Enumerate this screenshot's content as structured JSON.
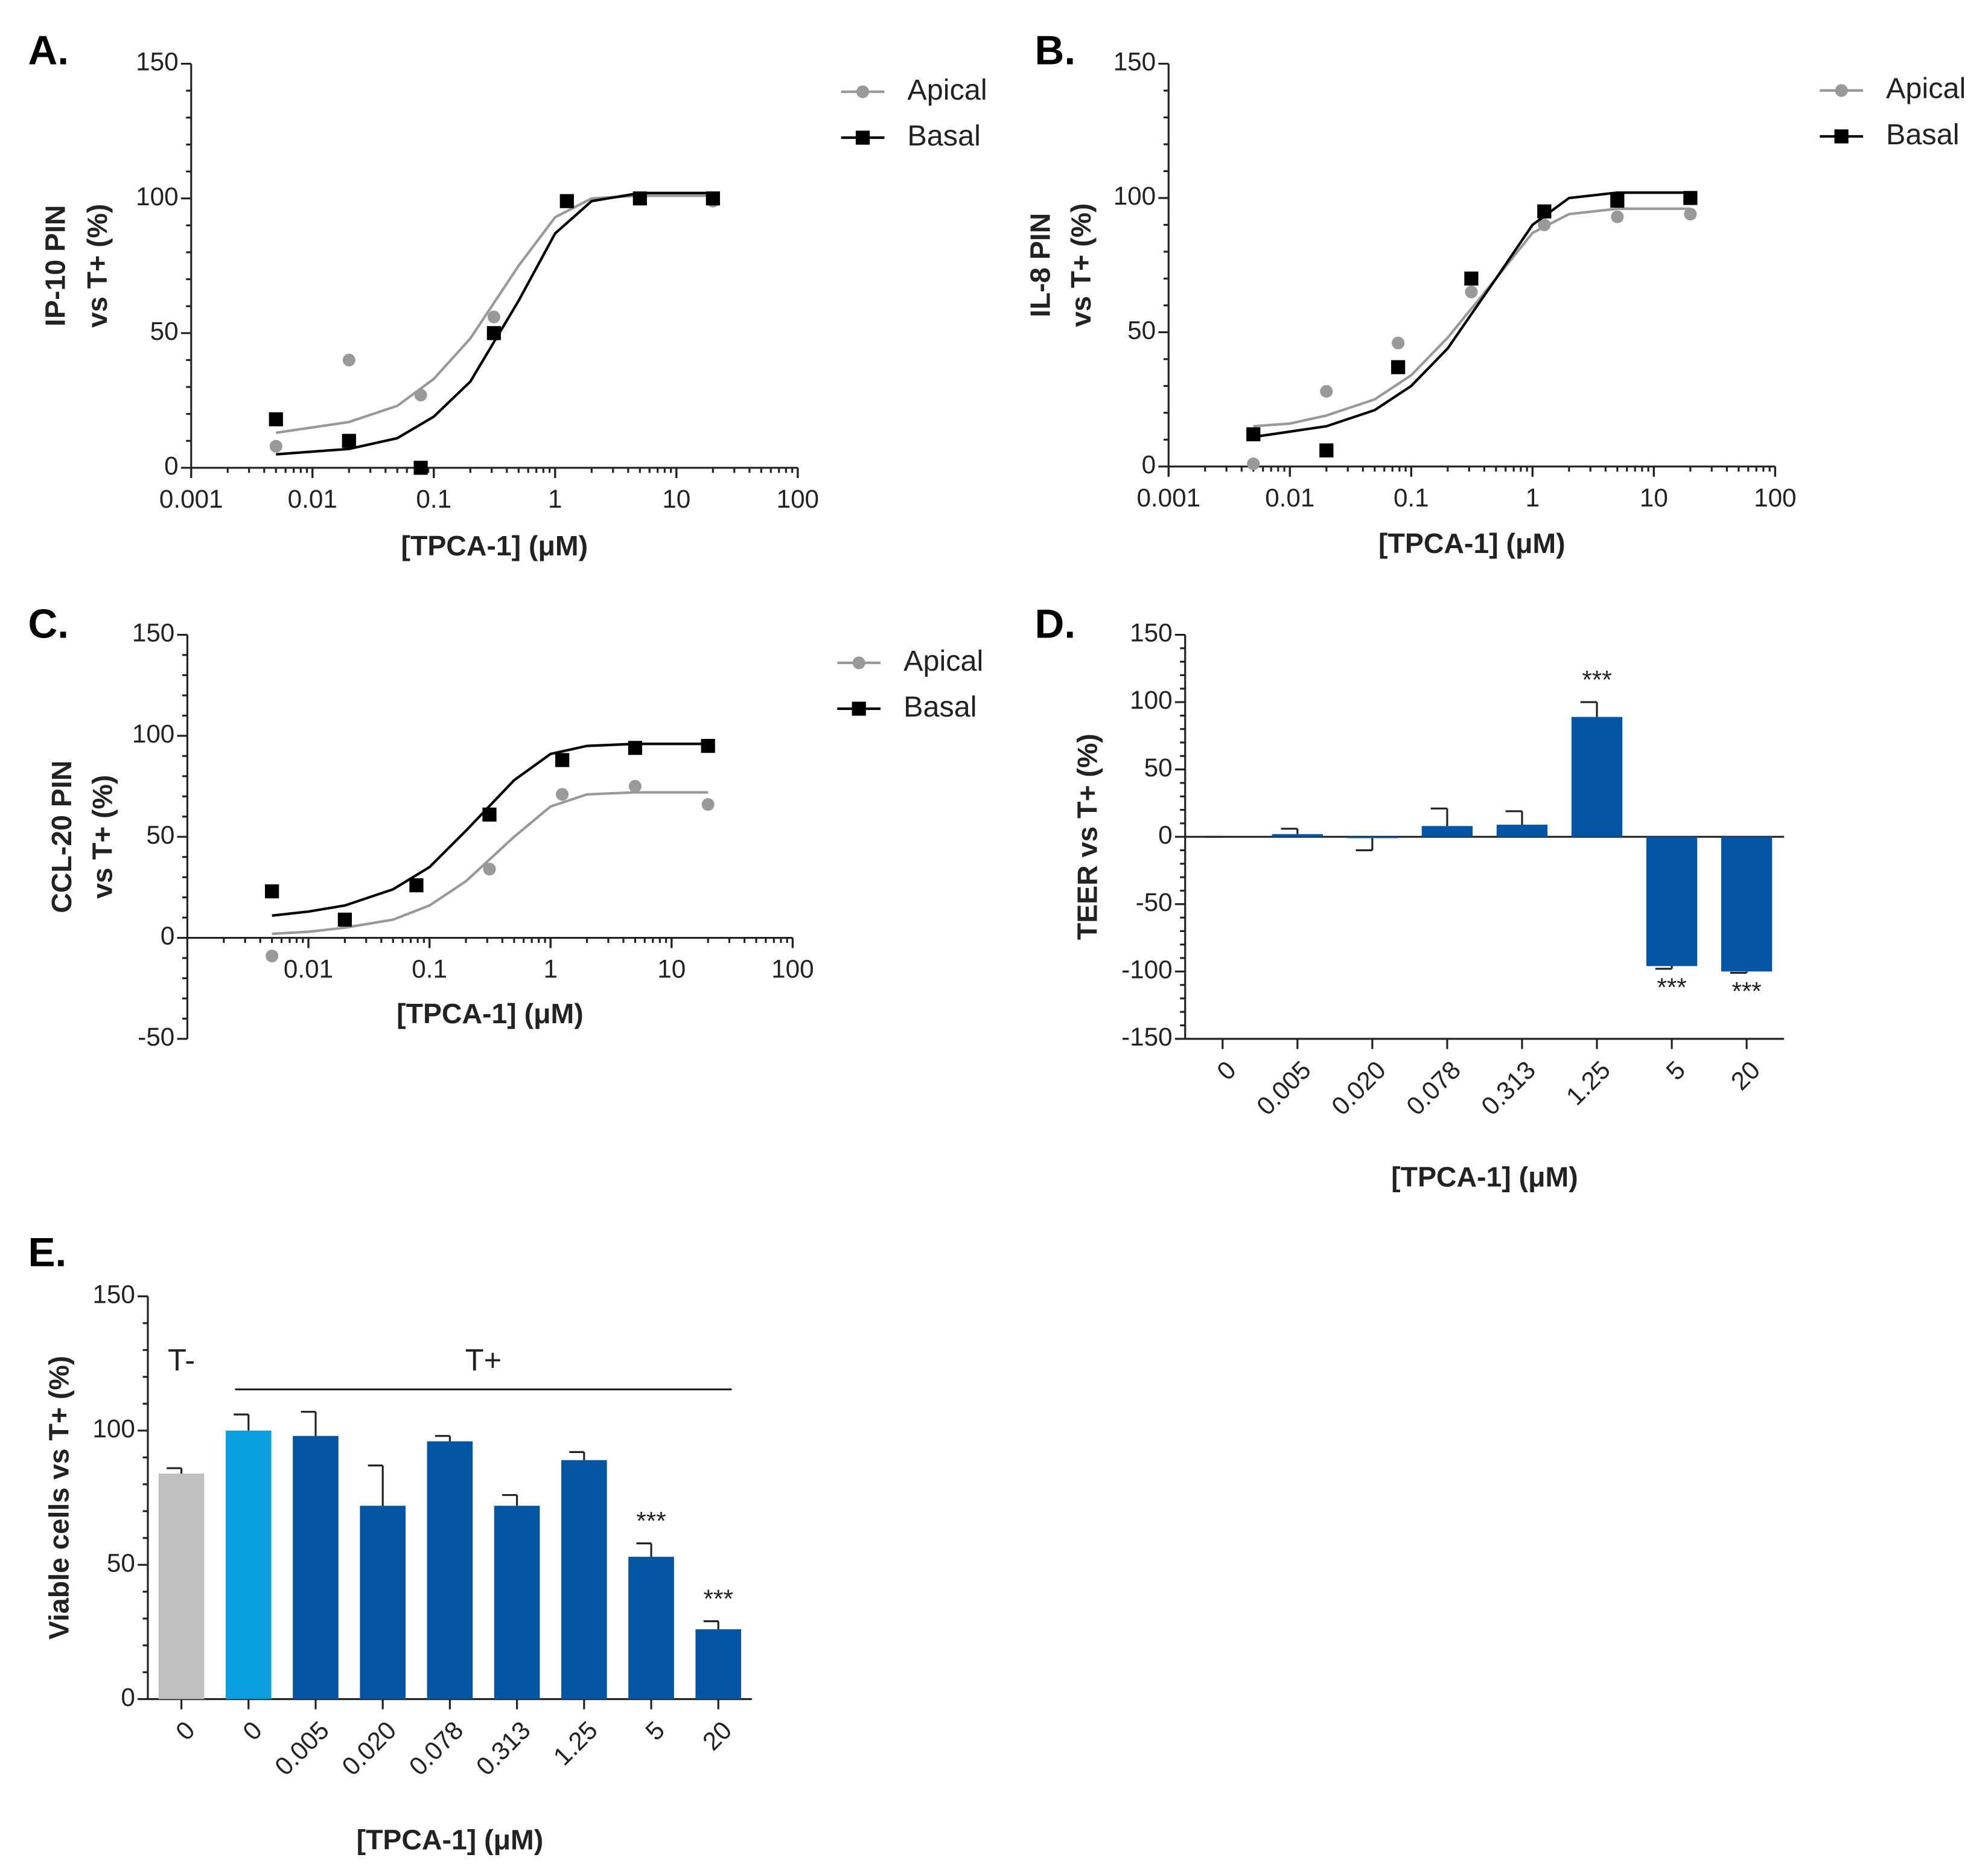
{
  "chart_data": [
    {
      "type": "scatter",
      "panel": "A.",
      "xlabel": "[TPCA-1] (μM)",
      "ylabel": [
        "IP-10 PIN",
        "vs T+  (%)"
      ],
      "xscale": "log",
      "xlim": [
        0.001,
        100
      ],
      "xticks": [
        0.001,
        0.01,
        0.1,
        1,
        10,
        100
      ],
      "ylim": [
        0,
        150
      ],
      "yticks": [
        0,
        50,
        100,
        150
      ],
      "legend": "upper right",
      "series": [
        {
          "name": "Apical",
          "color": "#999999",
          "marker": "circle",
          "x": [
            0.005,
            0.02,
            0.078,
            0.313,
            1.25,
            5,
            20
          ],
          "values": [
            8,
            40,
            27,
            56,
            99,
            100,
            99
          ],
          "fit_x": [
            0.005,
            0.01,
            0.02,
            0.05,
            0.1,
            0.2,
            0.5,
            1,
            2,
            5,
            20
          ],
          "fit_values": [
            13,
            15,
            17,
            23,
            33,
            48,
            75,
            93,
            100,
            101,
            101
          ]
        },
        {
          "name": "Basal",
          "color": "#000000",
          "marker": "square",
          "x": [
            0.005,
            0.02,
            0.078,
            0.313,
            1.25,
            5,
            20
          ],
          "values": [
            18,
            10,
            0,
            50,
            99,
            100,
            100
          ],
          "fit_x": [
            0.005,
            0.01,
            0.02,
            0.05,
            0.1,
            0.2,
            0.5,
            1,
            2,
            5,
            20
          ],
          "fit_values": [
            5,
            6,
            7,
            11,
            19,
            32,
            62,
            87,
            99,
            102,
            102
          ]
        }
      ]
    },
    {
      "type": "scatter",
      "panel": "B.",
      "xlabel": "[TPCA-1] (μM)",
      "ylabel": [
        "IL-8 PIN",
        "vs T+  (%)"
      ],
      "xscale": "log",
      "xlim": [
        0.001,
        100
      ],
      "xticks": [
        0.001,
        0.01,
        0.1,
        1,
        10,
        100
      ],
      "ylim": [
        0,
        150
      ],
      "yticks": [
        0,
        50,
        100,
        150
      ],
      "legend": "upper right",
      "series": [
        {
          "name": "Apical",
          "color": "#999999",
          "marker": "circle",
          "x": [
            0.005,
            0.02,
            0.078,
            0.313,
            1.25,
            5,
            20
          ],
          "values": [
            1,
            28,
            46,
            65,
            90,
            93,
            94
          ],
          "fit_x": [
            0.005,
            0.01,
            0.02,
            0.05,
            0.1,
            0.2,
            0.5,
            1,
            2,
            5,
            20
          ],
          "fit_values": [
            15,
            16,
            19,
            25,
            34,
            48,
            70,
            87,
            94,
            96,
            96
          ]
        },
        {
          "name": "Basal",
          "color": "#000000",
          "marker": "square",
          "x": [
            0.005,
            0.02,
            0.078,
            0.313,
            1.25,
            5,
            20
          ],
          "values": [
            12,
            6,
            37,
            70,
            95,
            99,
            100
          ],
          "fit_x": [
            0.005,
            0.01,
            0.02,
            0.05,
            0.1,
            0.2,
            0.5,
            1,
            2,
            5,
            20
          ],
          "fit_values": [
            11,
            13,
            15,
            21,
            30,
            44,
            70,
            90,
            100,
            102,
            102
          ]
        }
      ]
    },
    {
      "type": "scatter",
      "panel": "C.",
      "xlabel": "[TPCA-1] (μM)",
      "ylabel": [
        "CCL-20 PIN",
        "vs T+  (%)"
      ],
      "xscale": "log",
      "xlim": [
        0.001,
        100
      ],
      "xticks": [
        0.01,
        0.1,
        1,
        10,
        100
      ],
      "ylim": [
        -50,
        150
      ],
      "yticks": [
        -50,
        0,
        50,
        100,
        150
      ],
      "legend": "upper right",
      "series": [
        {
          "name": "Apical",
          "color": "#999999",
          "marker": "circle",
          "x": [
            0.005,
            0.02,
            0.078,
            0.313,
            1.25,
            5,
            20
          ],
          "values": [
            -9,
            8,
            26,
            34,
            71,
            75,
            66
          ],
          "fit_x": [
            0.005,
            0.01,
            0.02,
            0.05,
            0.1,
            0.2,
            0.5,
            1,
            2,
            5,
            20
          ],
          "fit_values": [
            2,
            3,
            5,
            9,
            16,
            28,
            50,
            65,
            71,
            72,
            72
          ]
        },
        {
          "name": "Basal",
          "color": "#000000",
          "marker": "square",
          "x": [
            0.005,
            0.02,
            0.078,
            0.313,
            1.25,
            5,
            20
          ],
          "values": [
            23,
            9,
            26,
            61,
            88,
            94,
            95
          ],
          "fit_x": [
            0.005,
            0.01,
            0.02,
            0.05,
            0.1,
            0.2,
            0.5,
            1,
            2,
            5,
            20
          ],
          "fit_values": [
            11,
            13,
            16,
            24,
            35,
            53,
            78,
            91,
            95,
            96,
            96
          ]
        }
      ]
    },
    {
      "type": "bar",
      "panel": "D.",
      "xlabel": "[TPCA-1] (μM)",
      "ylabel": [
        "TEER vs T+ (%)"
      ],
      "categories": [
        "0",
        "0.005",
        "0.020",
        "0.078",
        "0.313",
        "1.25",
        "5",
        "20"
      ],
      "values": [
        0,
        2,
        -1,
        8,
        9,
        89,
        -96,
        -100
      ],
      "errors": [
        0,
        4,
        9,
        13,
        10,
        11,
        2,
        1
      ],
      "color": "#0455a4",
      "ylim": [
        -150,
        150
      ],
      "yticks": [
        -150,
        -100,
        -50,
        0,
        50,
        100,
        150
      ],
      "annotations": [
        {
          "text": "***",
          "index": 5
        },
        {
          "text": "***",
          "index": 6
        },
        {
          "text": "***",
          "index": 7
        }
      ]
    },
    {
      "type": "bar",
      "panel": "E.",
      "xlabel": "[TPCA-1] (μM)",
      "ylabel": [
        "Viable cells vs T+ (%)"
      ],
      "categories": [
        "0",
        "0",
        "0.005",
        "0.020",
        "0.078",
        "0.313",
        "1.25",
        "5",
        "20"
      ],
      "values": [
        84,
        100,
        98,
        72,
        96,
        72,
        89,
        53,
        26
      ],
      "errors": [
        2,
        6,
        9,
        15,
        2,
        4,
        3,
        5,
        3
      ],
      "colors": [
        "#bfbfbf",
        "#0aa0e0",
        "#0455a4",
        "#0455a4",
        "#0455a4",
        "#0455a4",
        "#0455a4",
        "#0455a4",
        "#0455a4"
      ],
      "ylim": [
        0,
        150
      ],
      "yticks": [
        0,
        50,
        100,
        150
      ],
      "annotations": [
        {
          "text": "***",
          "index": 7
        },
        {
          "text": "***",
          "index": 8
        }
      ],
      "groups": [
        {
          "label": "T-",
          "start": 0,
          "end": 0,
          "line": false
        },
        {
          "label": "T+",
          "start": 1,
          "end": 8,
          "line": true
        }
      ]
    }
  ]
}
